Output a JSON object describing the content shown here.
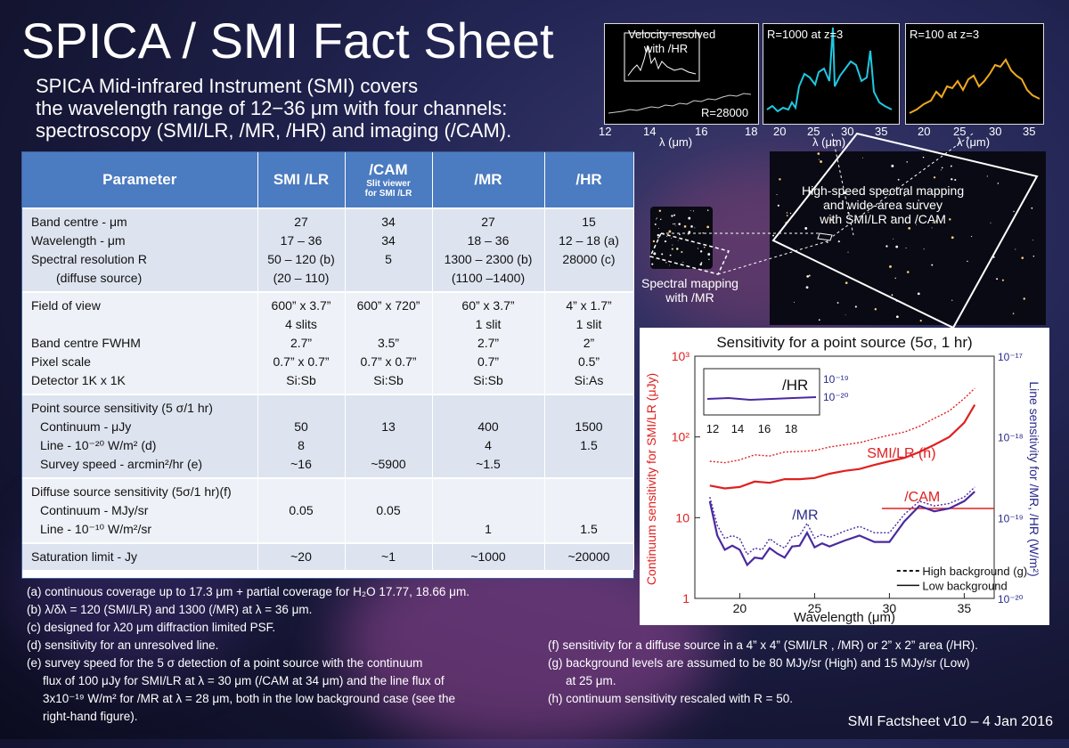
{
  "title": "SPICA / SMI Fact Sheet",
  "intro": {
    "line1": "SPICA Mid-infrared Instrument (SMI) covers",
    "line2": "the wavelength range of 12−36 μm with four channels:",
    "line3": "spectroscopy (SMI/LR, /MR, /HR) and imaging (/CAM)."
  },
  "table": {
    "headers": {
      "param": "Parameter",
      "lr": "SMI /LR",
      "cam": "/CAM",
      "cam_sub1": "Slit viewer",
      "cam_sub2": "for SMI /LR",
      "mr": "/MR",
      "hr": "/HR"
    },
    "group1": {
      "param": [
        "Band centre - μm",
        "Wavelength - μm",
        "Spectral resolution R",
        "(diffuse source)"
      ],
      "lr": [
        "27",
        "17 – 36",
        "50 – 120 (b)",
        "(20 – 110)"
      ],
      "cam": [
        "34",
        "34",
        "5",
        ""
      ],
      "mr": [
        "27",
        "18 – 36",
        "1300 – 2300 (b)",
        "(1100 –1400)"
      ],
      "hr": [
        "15",
        "12 – 18 (a)",
        "28000 (c)",
        ""
      ]
    },
    "group2": {
      "param": [
        "Field of view",
        "",
        "Band centre FWHM",
        "Pixel scale",
        "Detector 1K x 1K"
      ],
      "lr": [
        "600” x 3.7”",
        "4 slits",
        "2.7”",
        "0.7” x 0.7”",
        "Si:Sb"
      ],
      "cam": [
        "600” x 720”",
        "",
        "3.5”",
        "0.7” x 0.7”",
        "Si:Sb"
      ],
      "mr": [
        "60” x 3.7”",
        "1 slit",
        "2.7”",
        "0.7”",
        "Si:Sb"
      ],
      "hr": [
        "4” x 1.7”",
        "1 slit",
        "2”",
        "0.5”",
        "Si:As"
      ]
    },
    "group3": {
      "param": [
        "Point source sensitivity (5 σ/1 hr)",
        "Continuum - μJy",
        "Line - 10⁻²⁰ W/m² (d)",
        "Survey speed - arcmin²/hr (e)"
      ],
      "lr": [
        "",
        "50",
        "8",
        "~16"
      ],
      "cam": [
        "",
        "13",
        "",
        "~5900"
      ],
      "mr": [
        "",
        "400",
        "4",
        "~1.5"
      ],
      "hr": [
        "",
        "1500",
        "1.5",
        ""
      ]
    },
    "group4": {
      "param": [
        "Diffuse source sensitivity (5σ/1 hr)(f)",
        "Continuum - MJy/sr",
        "Line - 10⁻¹⁰ W/m²/sr"
      ],
      "lr": [
        "",
        "0.05",
        ""
      ],
      "cam": [
        "",
        "0.05",
        ""
      ],
      "mr": [
        "",
        "",
        "1"
      ],
      "hr": [
        "",
        "",
        "1.5"
      ]
    },
    "group5": {
      "param": [
        "Saturation limit - Jy"
      ],
      "lr": [
        "~20"
      ],
      "cam": [
        "~1"
      ],
      "mr": [
        "~1000"
      ],
      "hr": [
        "~20000"
      ]
    }
  },
  "footnotes": {
    "a": "(a) continuous coverage up to  17.3 μm + partial coverage for H₂O 17.77, 18.66 μm.",
    "b": "(b) λ/δλ = 120 (SMI/LR) and 1300 (/MR) at λ = 36 μm.",
    "c": "(c) designed for λ20 μm diffraction limited PSF.",
    "d": "(d) sensitivity for an unresolved line.",
    "e1": "(e) survey speed for the 5 σ detection of a point source with the continuum",
    "e2": "flux of 100 μJy for SMI/LR at λ = 30 μm (/CAM at 34 μm) and the line flux of",
    "e3": "3x10⁻¹⁹ W/m² for /MR at λ = 28 μm, both in the low background case (see the",
    "e4": "right-hand figure).",
    "f": "(f) sensitivity for a diffuse source in a 4” x 4” (SMI/LR , /MR) or 2” x 2” area (/HR).",
    "g1": "(g) background levels are assumed to be 80 MJy/sr (High) and 15 MJy/sr (Low)",
    "g2": "at 25 μm.",
    "h": "(h) continuum sensitivity  rescaled with R = 50."
  },
  "footer": "SMI Factsheet v10 – 4 Jan 2016",
  "spectra": {
    "hr": {
      "label1": "Velocity-resolved",
      "label2": "with /HR",
      "r_label": "R=28000",
      "ticks": [
        "12",
        "14",
        "16",
        "18"
      ],
      "xlabel": "λ (μm)"
    },
    "mr": {
      "label": "R=1000 at z=3",
      "ticks": [
        "20",
        "25",
        "30",
        "35"
      ],
      "xlabel": "λ (μm)",
      "color": "#20c8e0"
    },
    "lr": {
      "label": "R=100 at z=3",
      "ticks": [
        "20",
        "25",
        "30",
        "35"
      ],
      "xlabel": "λ (μm)",
      "color": "#f0a820"
    }
  },
  "mapping": {
    "wide": "High-speed spectral mapping and wide-area survey with SMI/LR and /CAM",
    "wide1": "High-speed spectral mapping",
    "wide2": "and wide-area survey",
    "wide3": "with SMI/LR and /CAM",
    "mr1": "Spectral mapping",
    "mr2": "with /MR"
  },
  "chart_data": {
    "type": "line",
    "title": "Sensitivity for a point source (5σ, 1 hr)",
    "xlabel": "Wavelength (μm)",
    "ylabel_left": "Continuum sensitivity for SMI/LR (μJy)",
    "ylabel_right": "Line sensitivity for /MR, /HR (W/m²)",
    "xlim": [
      17,
      37
    ],
    "ylim": [
      1,
      1000
    ],
    "log_y": true,
    "x_ticks": [
      "20",
      "25",
      "30",
      "35"
    ],
    "y_ticks_left": [
      "1",
      "10",
      "10²",
      "10³"
    ],
    "y_ticks_right": [
      "10⁻²⁰",
      "10⁻¹⁹",
      "10⁻¹⁸",
      "10⁻¹⁷"
    ],
    "series": [
      {
        "name": "SMI/LR (h)",
        "style": "low",
        "color": "#e02020",
        "x": [
          18,
          19,
          20,
          21,
          22,
          23,
          24,
          25,
          26,
          27,
          28,
          29,
          30,
          31,
          32,
          33,
          34,
          35,
          35.7
        ],
        "y": [
          25,
          23,
          24,
          28,
          27,
          30,
          30,
          31,
          35,
          38,
          40,
          45,
          50,
          55,
          65,
          80,
          100,
          150,
          250
        ]
      },
      {
        "name": "SMI/LR (h)",
        "style": "high",
        "color": "#e02020",
        "x": [
          18,
          19,
          20,
          21,
          22,
          23,
          24,
          25,
          26,
          27,
          28,
          29,
          30,
          31,
          32,
          33,
          34,
          35,
          35.7
        ],
        "y": [
          50,
          48,
          52,
          60,
          58,
          65,
          66,
          68,
          75,
          80,
          85,
          95,
          105,
          115,
          135,
          170,
          210,
          300,
          400
        ]
      },
      {
        "name": "/MR",
        "style": "low",
        "color": "#4a2aa0",
        "x": [
          18,
          18.5,
          19,
          19.5,
          20,
          20.5,
          21,
          21.5,
          22,
          22.5,
          23,
          23.5,
          24,
          24.5,
          25,
          25.5,
          26,
          27,
          28,
          29,
          30,
          31,
          32,
          33,
          34,
          35,
          35.7
        ],
        "y": [
          16,
          6,
          4,
          4.5,
          4,
          2.6,
          3.2,
          3.1,
          4.2,
          3.6,
          3.2,
          4.4,
          4.5,
          6.5,
          4.3,
          4.8,
          4.4,
          5.2,
          6,
          5,
          5,
          9,
          14,
          12,
          13,
          16,
          21
        ]
      },
      {
        "name": "/MR",
        "style": "high",
        "color": "#4a2aa0",
        "x": [
          18,
          18.5,
          19,
          19.5,
          20,
          20.5,
          21,
          21.5,
          22,
          22.5,
          23,
          23.5,
          24,
          24.5,
          25,
          25.5,
          26,
          27,
          28,
          29,
          30,
          31,
          32,
          33,
          34,
          35,
          35.7
        ],
        "y": [
          18,
          8,
          5.5,
          6,
          5.5,
          3.5,
          4.2,
          4,
          5.5,
          4.7,
          4.2,
          5.8,
          6,
          8.5,
          5.6,
          6.2,
          5.7,
          6.8,
          7.8,
          6.5,
          6.5,
          11,
          16,
          14,
          15,
          18,
          24
        ]
      }
    ],
    "cam": {
      "label": "/CAM",
      "value": 13
    },
    "lr_label": "SMI/LR (h)",
    "mr_label": "/MR",
    "legend": {
      "high": "High background (g)",
      "low": "Low background"
    },
    "inset": {
      "label": "/HR",
      "ticks": [
        "12",
        "14",
        "16",
        "18"
      ],
      "ytick1": "10⁻¹⁹",
      "ytick2": "10⁻²⁰"
    }
  }
}
